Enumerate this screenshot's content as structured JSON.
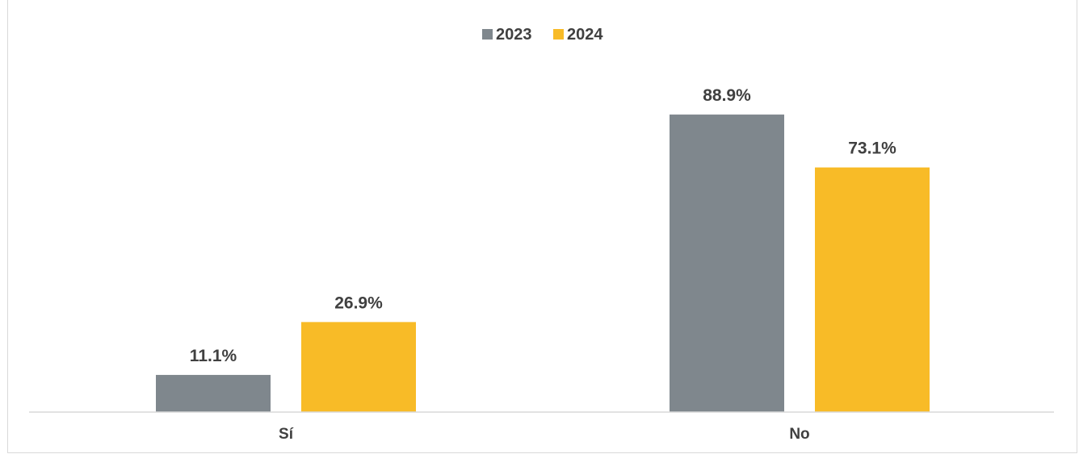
{
  "chart_data": {
    "type": "bar",
    "categories": [
      "Sí",
      "No"
    ],
    "series": [
      {
        "name": "2023",
        "values": [
          11.1,
          88.9
        ],
        "labels": [
          "11.1%",
          "88.9%"
        ],
        "color": "#7f878d"
      },
      {
        "name": "2024",
        "values": [
          26.9,
          73.1
        ],
        "labels": [
          "26.9%",
          "73.1%"
        ],
        "color": "#f8bb27"
      }
    ],
    "value_unit": "%",
    "ylim": [
      0,
      100
    ],
    "grid": false,
    "legend_position": "top-center",
    "axis_color": "#d9d9d9",
    "text_color": "#404040"
  }
}
